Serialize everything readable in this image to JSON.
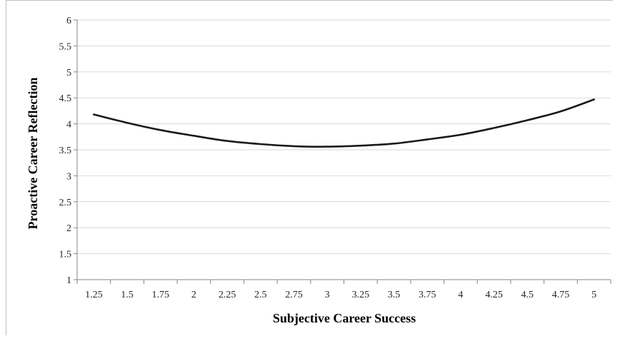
{
  "chart_data": {
    "type": "line",
    "xlabel": "Subjective Career Success",
    "ylabel": "Proactive Career Reflection",
    "ylim": [
      1,
      6
    ],
    "xlim": [
      1.25,
      5
    ],
    "y_ticks": [
      "1",
      "1.5",
      "2",
      "2.5",
      "3",
      "3.5",
      "4",
      "4.5",
      "5",
      "5.5",
      "6"
    ],
    "x_ticks": [
      "1.25",
      "1.5",
      "1.75",
      "2",
      "2.25",
      "2.5",
      "2.75",
      "3",
      "3.25",
      "3.5",
      "3.75",
      "4",
      "4.25",
      "4.5",
      "4.75",
      "5"
    ],
    "grid": "horizontal",
    "legend": "none",
    "series": [
      {
        "color": "#1a1a1a",
        "x": [
          1.25,
          1.5,
          1.75,
          2,
          2.25,
          2.5,
          2.75,
          3,
          3.25,
          3.5,
          3.75,
          4,
          4.25,
          4.5,
          4.75,
          5
        ],
        "values": [
          4.18,
          4.02,
          3.88,
          3.77,
          3.67,
          3.61,
          3.57,
          3.56,
          3.58,
          3.62,
          3.7,
          3.79,
          3.92,
          4.07,
          4.24,
          4.47
        ]
      }
    ]
  }
}
